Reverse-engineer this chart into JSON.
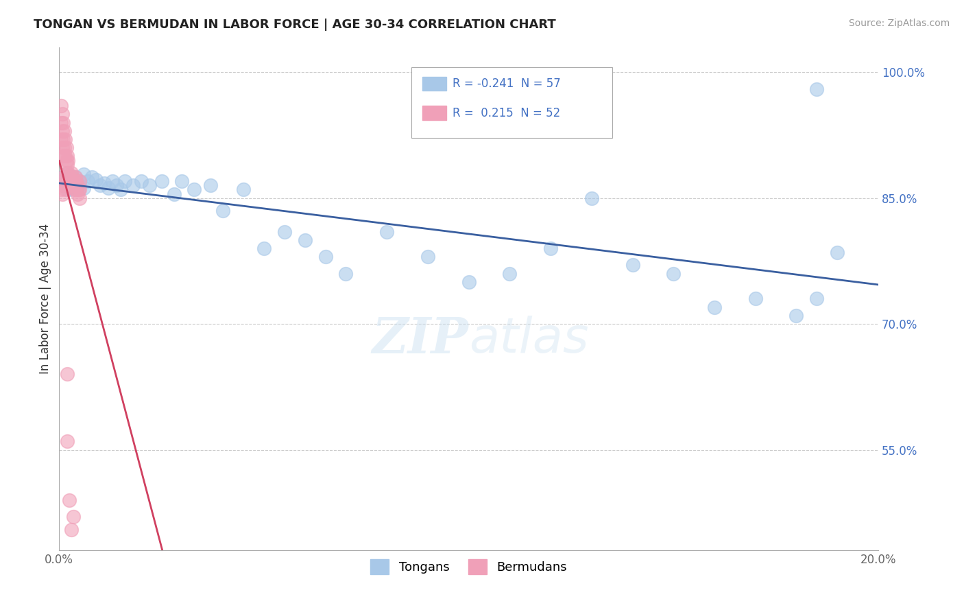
{
  "title": "TONGAN VS BERMUDAN IN LABOR FORCE | AGE 30-34 CORRELATION CHART",
  "source": "Source: ZipAtlas.com",
  "ylabel": "In Labor Force | Age 30-34",
  "xlim": [
    0.0,
    0.2
  ],
  "ylim": [
    0.43,
    1.03
  ],
  "ytick_positions": [
    0.55,
    0.7,
    0.85,
    1.0
  ],
  "ytick_labels": [
    "55.0%",
    "70.0%",
    "85.0%",
    "100.0%"
  ],
  "legend_tongans_r": "-0.241",
  "legend_tongans_n": "57",
  "legend_bermudans_r": "0.215",
  "legend_bermudans_n": "52",
  "blue_color": "#a8c8e8",
  "pink_color": "#f0a0b8",
  "blue_line_color": "#3a5fa0",
  "pink_line_color": "#d04060",
  "background_color": "#ffffff",
  "grid_color": "#cccccc",
  "tongans_x": [
    0.001,
    0.001,
    0.001,
    0.002,
    0.002,
    0.002,
    0.002,
    0.003,
    0.003,
    0.003,
    0.003,
    0.004,
    0.004,
    0.004,
    0.005,
    0.005,
    0.006,
    0.006,
    0.007,
    0.008,
    0.009,
    0.01,
    0.011,
    0.012,
    0.013,
    0.014,
    0.015,
    0.016,
    0.018,
    0.02,
    0.022,
    0.025,
    0.028,
    0.03,
    0.033,
    0.037,
    0.04,
    0.045,
    0.05,
    0.055,
    0.06,
    0.065,
    0.07,
    0.08,
    0.09,
    0.1,
    0.11,
    0.12,
    0.13,
    0.14,
    0.15,
    0.16,
    0.17,
    0.18,
    0.185,
    0.185,
    0.19
  ],
  "tongans_y": [
    0.875,
    0.87,
    0.865,
    0.88,
    0.87,
    0.865,
    0.86,
    0.875,
    0.87,
    0.865,
    0.86,
    0.875,
    0.868,
    0.862,
    0.87,
    0.865,
    0.878,
    0.862,
    0.87,
    0.875,
    0.872,
    0.865,
    0.868,
    0.862,
    0.87,
    0.865,
    0.86,
    0.87,
    0.865,
    0.87,
    0.865,
    0.87,
    0.855,
    0.87,
    0.86,
    0.865,
    0.835,
    0.86,
    0.79,
    0.81,
    0.8,
    0.78,
    0.76,
    0.81,
    0.78,
    0.75,
    0.76,
    0.79,
    0.85,
    0.77,
    0.76,
    0.72,
    0.73,
    0.71,
    0.98,
    0.73,
    0.785
  ],
  "bermudans_x": [
    0.0005,
    0.0005,
    0.0005,
    0.0008,
    0.0008,
    0.0008,
    0.001,
    0.001,
    0.001,
    0.0013,
    0.0013,
    0.0015,
    0.0015,
    0.0018,
    0.0018,
    0.002,
    0.002,
    0.002,
    0.0022,
    0.0022,
    0.0025,
    0.0025,
    0.003,
    0.003,
    0.003,
    0.0033,
    0.0033,
    0.0035,
    0.0038,
    0.004,
    0.004,
    0.0042,
    0.0042,
    0.0045,
    0.0045,
    0.0048,
    0.005,
    0.005,
    0.005,
    0.0005,
    0.0005,
    0.0008,
    0.0008,
    0.001,
    0.0013,
    0.0015,
    0.0018,
    0.002,
    0.002,
    0.0025,
    0.003,
    0.0035
  ],
  "bermudans_y": [
    0.96,
    0.94,
    0.92,
    0.95,
    0.93,
    0.91,
    0.94,
    0.92,
    0.9,
    0.93,
    0.91,
    0.92,
    0.9,
    0.91,
    0.895,
    0.9,
    0.89,
    0.88,
    0.895,
    0.88,
    0.875,
    0.87,
    0.88,
    0.87,
    0.865,
    0.875,
    0.865,
    0.87,
    0.86,
    0.875,
    0.865,
    0.87,
    0.86,
    0.865,
    0.855,
    0.86,
    0.87,
    0.86,
    0.85,
    0.87,
    0.86,
    0.865,
    0.855,
    0.875,
    0.865,
    0.86,
    0.87,
    0.64,
    0.56,
    0.49,
    0.455,
    0.47
  ]
}
